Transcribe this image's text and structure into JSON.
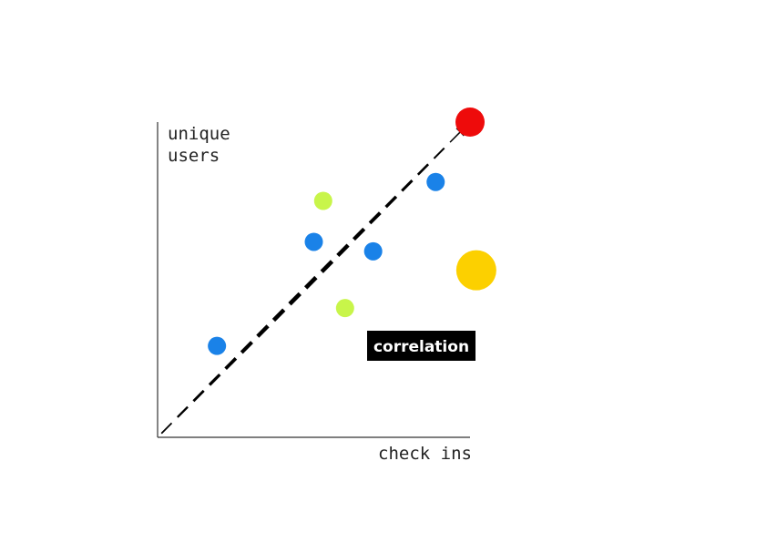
{
  "chart_data": {
    "type": "scatter",
    "xlabel": "check ins",
    "ylabel_lines": [
      "unique",
      "users"
    ],
    "xlim": [
      0,
      100
    ],
    "ylim": [
      0,
      100
    ],
    "grid": false,
    "points": [
      {
        "x": 19,
        "y": 29,
        "color": "#1a82e8",
        "size": 10
      },
      {
        "x": 50,
        "y": 62,
        "color": "#1a82e8",
        "size": 10
      },
      {
        "x": 69,
        "y": 59,
        "color": "#1a82e8",
        "size": 10
      },
      {
        "x": 89,
        "y": 81,
        "color": "#1a82e8",
        "size": 10
      },
      {
        "x": 53,
        "y": 75,
        "color": "#c8f54a",
        "size": 10
      },
      {
        "x": 60,
        "y": 41,
        "color": "#c8f54a",
        "size": 10
      },
      {
        "x": 100,
        "y": 100,
        "color": "#ee0b0b",
        "size": 16
      },
      {
        "x": 102,
        "y": 53,
        "color": "#fcd000",
        "size": 22
      }
    ],
    "trend": {
      "from": [
        0,
        0
      ],
      "to": [
        100,
        100
      ],
      "style": "dashed-arrow",
      "color": "#000000"
    },
    "annotation": {
      "text": "correlation",
      "background": "#000000",
      "color": "#ffffff"
    }
  }
}
